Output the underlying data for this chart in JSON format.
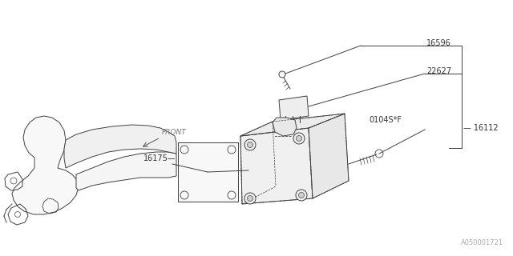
{
  "bg_color": "#ffffff",
  "line_color": "#404040",
  "figsize": [
    6.4,
    3.2
  ],
  "dpi": 100,
  "diagram_id": "A050001721",
  "lw": 0.7
}
